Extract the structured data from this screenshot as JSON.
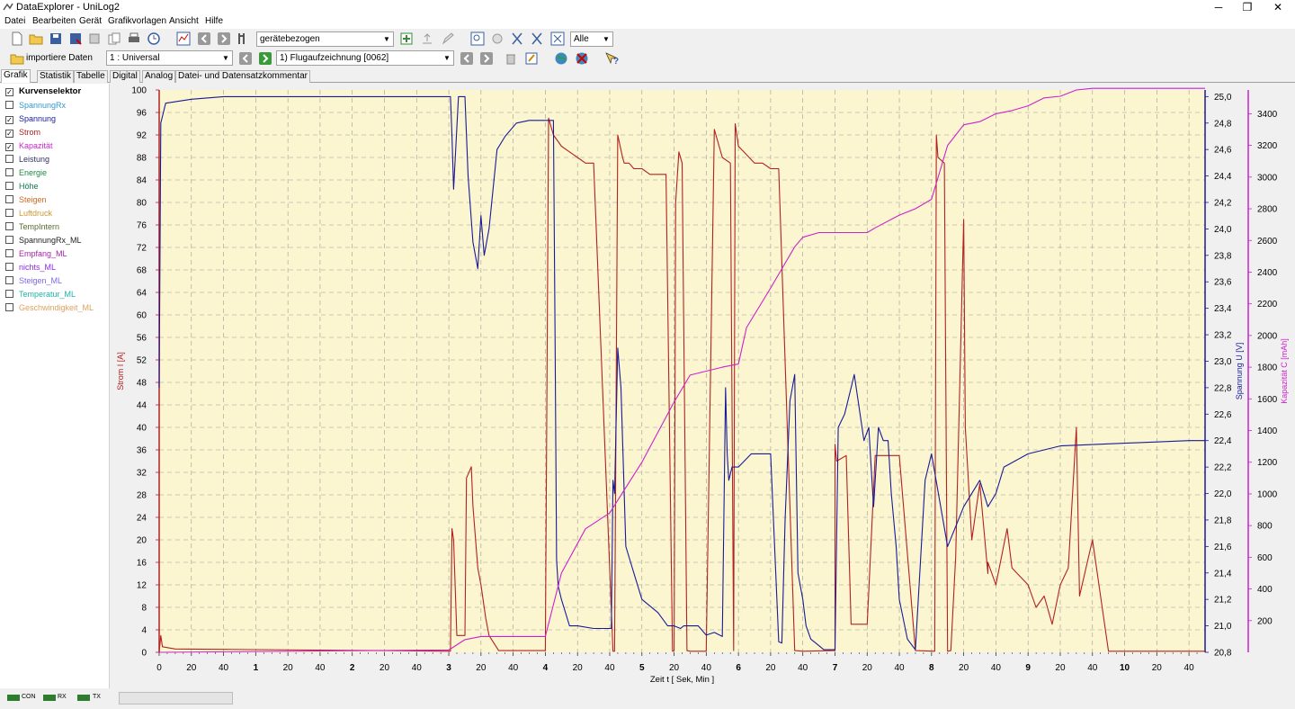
{
  "window": {
    "title": "DataExplorer  -  UniLog2",
    "minimize": "─",
    "restore": "❐",
    "close": "✕"
  },
  "menu": [
    "Datei",
    "Bearbeiten",
    "Gerät",
    "Grafikvorlagen",
    "Ansicht",
    "Hilfe"
  ],
  "toolbar1": {
    "view_select": "gerätebezogen",
    "filter_select": "Alle"
  },
  "toolbar2": {
    "import_label": "importiere Daten",
    "device_select": "1 : Universal",
    "record_select": "1) Flugaufzeichnung [0062]"
  },
  "tabs": [
    "Grafik",
    "Statistik",
    "Tabelle",
    "Digital",
    "Analog",
    "Datei- und Datensatzkommentar"
  ],
  "curve_selector": {
    "header": "Kurvenselektor",
    "items": [
      {
        "label": "SpannungRx",
        "color": "#3399cc",
        "checked": false
      },
      {
        "label": "Spannung",
        "color": "#1a1a99",
        "checked": true
      },
      {
        "label": "Strom",
        "color": "#b22222",
        "checked": true
      },
      {
        "label": "Kapazität",
        "color": "#cc22cc",
        "checked": true
      },
      {
        "label": "Leistung",
        "color": "#333366",
        "checked": false
      },
      {
        "label": "Energie",
        "color": "#228844",
        "checked": false
      },
      {
        "label": "Höhe",
        "color": "#117755",
        "checked": false
      },
      {
        "label": "Steigen",
        "color": "#d2691e",
        "checked": false
      },
      {
        "label": "Luftdruck",
        "color": "#cc9933",
        "checked": false
      },
      {
        "label": "TempIntern",
        "color": "#556b2f",
        "checked": false
      },
      {
        "label": "SpannungRx_ML",
        "color": "#222222",
        "checked": false
      },
      {
        "label": "Empfang_ML",
        "color": "#aa22aa",
        "checked": false
      },
      {
        "label": "nichts_ML",
        "color": "#8a2be2",
        "checked": false
      },
      {
        "label": "Steigen_ML",
        "color": "#7b68ee",
        "checked": false
      },
      {
        "label": "Temperatur_ML",
        "color": "#20b2aa",
        "checked": false
      },
      {
        "label": "Geschwindigkeit_ML",
        "color": "#e0a060",
        "checked": false
      }
    ]
  },
  "status": {
    "leds": [
      "CON",
      "RX",
      "TX"
    ],
    "led_color": "#2e7d2e"
  },
  "chart_data": {
    "type": "line",
    "background": "#fbf6d0",
    "grid": true,
    "x_axis": {
      "label": "Zeit  t  [ Sek, Min ]",
      "range_seconds": [
        0,
        650
      ],
      "tick_step_seconds": 20,
      "tick_labels": [
        "0",
        "20",
        "40",
        "1",
        "20",
        "40",
        "2",
        "20",
        "40",
        "3",
        "20",
        "40",
        "4",
        "20",
        "40",
        "5",
        "20",
        "40",
        "6",
        "20",
        "40",
        "7",
        "20",
        "40",
        "8",
        "20",
        "40",
        "9",
        "20",
        "40",
        "10",
        "20",
        "40"
      ],
      "minute_labels": [
        "1",
        "2",
        "3",
        "4",
        "5",
        "6",
        "7",
        "8",
        "9",
        "10"
      ]
    },
    "y_left": {
      "label": "Strom   I  [A]",
      "color": "#b22222",
      "range": [
        0,
        100
      ],
      "tick_labels": [
        "0",
        "4",
        "8",
        "12",
        "16",
        "20",
        "24",
        "28",
        "32",
        "36",
        "40",
        "44",
        "48",
        "52",
        "56",
        "60",
        "64",
        "68",
        "72",
        "76",
        "80",
        "84",
        "88",
        "92",
        "96",
        "100"
      ]
    },
    "y_right1": {
      "label": "Spannung  U  [V]",
      "color": "#1a1a99",
      "range": [
        20.8,
        25.05
      ],
      "tick_labels": [
        "20,8",
        "21,0",
        "21,2",
        "21,4",
        "21,6",
        "21,8",
        "22,0",
        "22,2",
        "22,4",
        "22,6",
        "22,8",
        "23,0",
        "23,2",
        "23,4",
        "23,6",
        "23,8",
        "24,0",
        "24,2",
        "24,4",
        "24,6",
        "24,8",
        "25,0"
      ]
    },
    "y_right2": {
      "label": "Kapazität  C  [mAh]",
      "color": "#cc22cc",
      "range": [
        0,
        3550
      ],
      "tick_labels": [
        "200",
        "400",
        "600",
        "800",
        "1000",
        "1200",
        "1400",
        "1600",
        "1800",
        "2000",
        "2200",
        "2400",
        "2600",
        "2800",
        "3000",
        "3200",
        "3400"
      ]
    },
    "series": [
      {
        "name": "Strom",
        "axis": "y_left",
        "color": "#b22222",
        "x": [
          0,
          1,
          2,
          10,
          140,
          181,
          182,
          183,
          185,
          190,
          191,
          194,
          195,
          198,
          200,
          203,
          205,
          211,
          213,
          220,
          235,
          240,
          242,
          245,
          250,
          255,
          260,
          265,
          270,
          282,
          283,
          285,
          288,
          289,
          292,
          295,
          300,
          305,
          310,
          315,
          319,
          320,
          321,
          323,
          325,
          328,
          330,
          340,
          345,
          350,
          355,
          357,
          358,
          360,
          370,
          375,
          380,
          382,
          385,
          395,
          400,
          420,
          420,
          421,
          427,
          430,
          440,
          445,
          460,
          470,
          482,
          483,
          484,
          488,
          490,
          492,
          495,
          500,
          501,
          505,
          510,
          515,
          515,
          520,
          527,
          530,
          540,
          545,
          550,
          555,
          560,
          565,
          570,
          572,
          580,
          590,
          600,
          600,
          640,
          650
        ],
        "y": [
          0,
          3,
          1,
          0.6,
          0.3,
          0.2,
          22,
          20,
          3,
          3,
          31,
          33,
          26,
          15,
          12,
          6,
          3,
          0.3,
          0.3,
          0.3,
          0.3,
          0.3,
          95,
          92,
          90,
          89,
          88,
          87,
          87,
          0.2,
          0.2,
          92,
          88,
          87,
          87,
          86,
          86,
          85,
          85,
          85,
          0.2,
          0.3,
          80,
          89,
          87,
          0.3,
          0.2,
          0.2,
          93,
          88,
          87,
          0.3,
          94,
          90,
          87,
          87,
          86,
          86,
          86,
          0.3,
          0.2,
          0.3,
          37,
          34,
          35,
          5,
          5,
          35,
          35,
          0.3,
          0.2,
          92,
          88,
          87,
          0.2,
          0.3,
          17,
          77,
          40,
          20,
          30,
          14,
          16,
          12,
          22,
          15,
          12,
          8,
          10,
          5,
          12,
          15,
          40,
          10,
          20,
          0.2,
          0.2,
          0.2,
          0.2,
          0.2
        ]
      },
      {
        "name": "Spannung",
        "axis": "y_right1",
        "color": "#1a1a99",
        "x": [
          0,
          1,
          4,
          20,
          40,
          100,
          181,
          182,
          183,
          186,
          190,
          192,
          195,
          198,
          200,
          202,
          205,
          210,
          215,
          222,
          230,
          240,
          245,
          246,
          247,
          248,
          250,
          255,
          260,
          270,
          275,
          281,
          282,
          283,
          285,
          287,
          290,
          295,
          300,
          310,
          316,
          320,
          324,
          326,
          328,
          330,
          335,
          340,
          345,
          350,
          352,
          353,
          354,
          356,
          360,
          368,
          375,
          380,
          385,
          387,
          389,
          392,
          395,
          397,
          400,
          402,
          405,
          410,
          413,
          420,
          422,
          426,
          430,
          432,
          438,
          441,
          442,
          444,
          447,
          450,
          453,
          455,
          458,
          460,
          465,
          470,
          476,
          480,
          490,
          500,
          510,
          515,
          520,
          525,
          540,
          560,
          580,
          600,
          620,
          640,
          650
        ],
        "y": [
          22.8,
          24.8,
          24.95,
          24.98,
          25.0,
          25.0,
          25.0,
          24.7,
          24.3,
          25.0,
          25.0,
          24.4,
          23.9,
          23.7,
          24.1,
          23.8,
          24.0,
          24.6,
          24.7,
          24.8,
          24.82,
          24.82,
          24.82,
          23.2,
          21.5,
          21.3,
          21.2,
          21.0,
          21.0,
          20.98,
          20.98,
          20.98,
          22.1,
          22.0,
          23.1,
          22.8,
          21.6,
          21.4,
          21.2,
          21.1,
          21.0,
          21.0,
          20.98,
          21.0,
          21.0,
          21.0,
          21.0,
          20.93,
          20.95,
          20.92,
          22.8,
          22.3,
          22.1,
          22.2,
          22.2,
          22.3,
          22.3,
          22.3,
          20.88,
          20.87,
          21.8,
          22.7,
          22.9,
          21.4,
          21.2,
          21.0,
          20.9,
          20.85,
          20.82,
          20.82,
          22.5,
          22.6,
          22.8,
          22.9,
          22.4,
          22.5,
          22.3,
          21.9,
          22.5,
          22.4,
          22.4,
          22.0,
          21.6,
          21.2,
          20.9,
          20.82,
          22.1,
          22.3,
          21.6,
          21.9,
          22.1,
          21.9,
          22.0,
          22.2,
          22.3,
          22.36,
          22.37,
          22.38,
          22.39,
          22.4,
          22.4
        ]
      },
      {
        "name": "Kapazität",
        "axis": "y_right2",
        "color": "#cc22cc",
        "x": [
          0,
          180,
          190,
          200,
          240,
          250,
          265,
          280,
          300,
          320,
          330,
          350,
          360,
          365,
          380,
          395,
          400,
          410,
          420,
          440,
          445,
          460,
          470,
          480,
          490,
          500,
          510,
          520,
          530,
          540,
          550,
          560,
          570,
          580,
          590,
          650
        ],
        "y": [
          0,
          15,
          80,
          100,
          100,
          500,
          780,
          880,
          1200,
          1580,
          1750,
          1800,
          1820,
          2050,
          2300,
          2560,
          2620,
          2650,
          2650,
          2650,
          2680,
          2760,
          2800,
          2860,
          3200,
          3330,
          3350,
          3400,
          3420,
          3450,
          3500,
          3510,
          3550,
          3560,
          3560,
          3560
        ]
      }
    ]
  }
}
